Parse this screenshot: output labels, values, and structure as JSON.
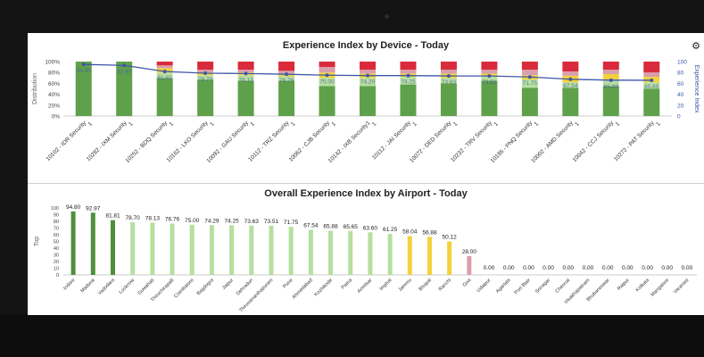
{
  "chart_data": [
    {
      "type": "bar",
      "title": "Experience Index by Device - Today",
      "ylabel": "Distribution",
      "y2label": "Experience Index",
      "ylim": [
        0,
        100
      ],
      "y2lim": [
        0,
        100
      ],
      "yticks": [
        "0%",
        "20%",
        "40%",
        "60%",
        "80%",
        "100%"
      ],
      "y2ticks": [
        "0",
        "20",
        "40",
        "60",
        "80",
        "100"
      ],
      "categories": [
        "10102 - IDR Security 1",
        "10282 - IXM Security 1",
        "10252 - BDQ Security 1",
        "10162 - LKO Security 1",
        "10092 - GAU Security 1",
        "10112 - TRZ Security 1",
        "10062 - CJB Security 1",
        "10142 - IXB Security1 1",
        "10112 - JAI Security 1",
        "10072 - DED Security 1",
        "10232 - TRV Security 1",
        "10185 - PNQ Security 1",
        "10002 - AMD Security 1",
        "10042 - CCJ Security 1",
        "10272 - PAT Security 1"
      ],
      "series": [
        {
          "color": "#5fa14a",
          "values": [
            100,
            100,
            70,
            67,
            65,
            65,
            55,
            55,
            58,
            60,
            65,
            52,
            52,
            55,
            50
          ]
        },
        {
          "color": "#b7dfa0",
          "values": [
            0,
            0,
            10,
            8,
            10,
            8,
            15,
            15,
            14,
            10,
            8,
            15,
            10,
            10,
            12
          ]
        },
        {
          "color": "#f2d23a",
          "values": [
            0,
            0,
            8,
            5,
            5,
            5,
            10,
            8,
            6,
            8,
            5,
            8,
            12,
            12,
            10
          ]
        },
        {
          "color": "#d8a0ac",
          "values": [
            0,
            0,
            5,
            5,
            5,
            5,
            10,
            7,
            7,
            7,
            7,
            10,
            8,
            8,
            8
          ]
        },
        {
          "color": "#d92b3b",
          "values": [
            0,
            0,
            7,
            15,
            15,
            17,
            10,
            15,
            15,
            15,
            15,
            15,
            18,
            15,
            20
          ]
        }
      ],
      "line": {
        "color": "#3f56a8",
        "values": [
          94.8,
          92.97,
          81.81,
          78.7,
          78.13,
          76.76,
          75.0,
          74.29,
          74.25,
          73.63,
          73.51,
          71.75,
          67.54,
          65.88,
          65.65
        ]
      },
      "data_labels": [
        "94.80",
        "92.97",
        "81.81",
        "78.70",
        "78.13",
        "76.76",
        "75.00",
        "74.29",
        "74.25",
        "73.63",
        "73.51",
        "71.75",
        "67.54",
        "65.88",
        "65.65"
      ]
    },
    {
      "type": "bar",
      "title": "Overall Experience Index by Airport - Today",
      "ylabel": "Top",
      "ylim": [
        0,
        100
      ],
      "yticks": [
        "0",
        "10",
        "20",
        "30",
        "40",
        "50",
        "60",
        "70",
        "80",
        "90",
        "100"
      ],
      "categories": [
        "Indore",
        "Madurai",
        "Vadodara",
        "Lucknow",
        "Guwahati",
        "Thiruchirapalli",
        "Coimbatore",
        "Bagdogra",
        "Jaipur",
        "Dehradun",
        "Thiruvananthapuram",
        "Pune",
        "Ahmedabad",
        "Kozhikode",
        "Patna",
        "Amritsar",
        "Imphal",
        "Jammu",
        "Bhopal",
        "Ranchi",
        "Goa",
        "Udaipur",
        "Agartala",
        "Port Blair",
        "Srinagar",
        "Chennai",
        "Visakhapatnam",
        "Bhubaneswar",
        "Raipur",
        "Kolkata",
        "Mangalore",
        "Varanasi"
      ],
      "values": [
        94.8,
        92.97,
        81.81,
        78.7,
        78.13,
        76.76,
        75.0,
        74.29,
        74.25,
        73.63,
        73.51,
        71.75,
        67.54,
        65.88,
        65.65,
        63.6,
        61.25,
        58.04,
        56.88,
        50.12,
        28.0,
        0,
        0,
        0,
        0,
        0,
        0,
        0,
        0,
        0,
        0,
        0
      ],
      "data_labels": [
        "94.80",
        "92.97",
        "81.81",
        "78.70",
        "78.13",
        "76.76",
        "75.00",
        "74.29",
        "74.25",
        "73.63",
        "73.51",
        "71.75",
        "67.54",
        "65.88",
        "65.65",
        "63.60",
        "61.25",
        "58.04",
        "56.88",
        "50.12",
        "28.00",
        "0.00",
        "0.00",
        "0.00",
        "0.00",
        "0.00",
        "0.00",
        "0.00",
        "0.00",
        "0.00",
        "0.00",
        "0.00"
      ],
      "colors": [
        "#4f8f3b",
        "#4f8f3b",
        "#4f8f3b",
        "#b7dfa0",
        "#b7dfa0",
        "#b7dfa0",
        "#b7dfa0",
        "#b7dfa0",
        "#b7dfa0",
        "#b7dfa0",
        "#b7dfa0",
        "#b7dfa0",
        "#b7dfa0",
        "#b7dfa0",
        "#b7dfa0",
        "#b7dfa0",
        "#b7dfa0",
        "#f2d23a",
        "#f2d23a",
        "#f2d23a",
        "#d8a0ac",
        "#d8a0ac",
        "#d8a0ac",
        "#d8a0ac",
        "#d8a0ac",
        "#d8a0ac",
        "#d8a0ac",
        "#d8a0ac",
        "#d8a0ac",
        "#d8a0ac",
        "#d8a0ac",
        "#d8a0ac"
      ]
    }
  ],
  "icons": {
    "settings": "gear-icon"
  }
}
